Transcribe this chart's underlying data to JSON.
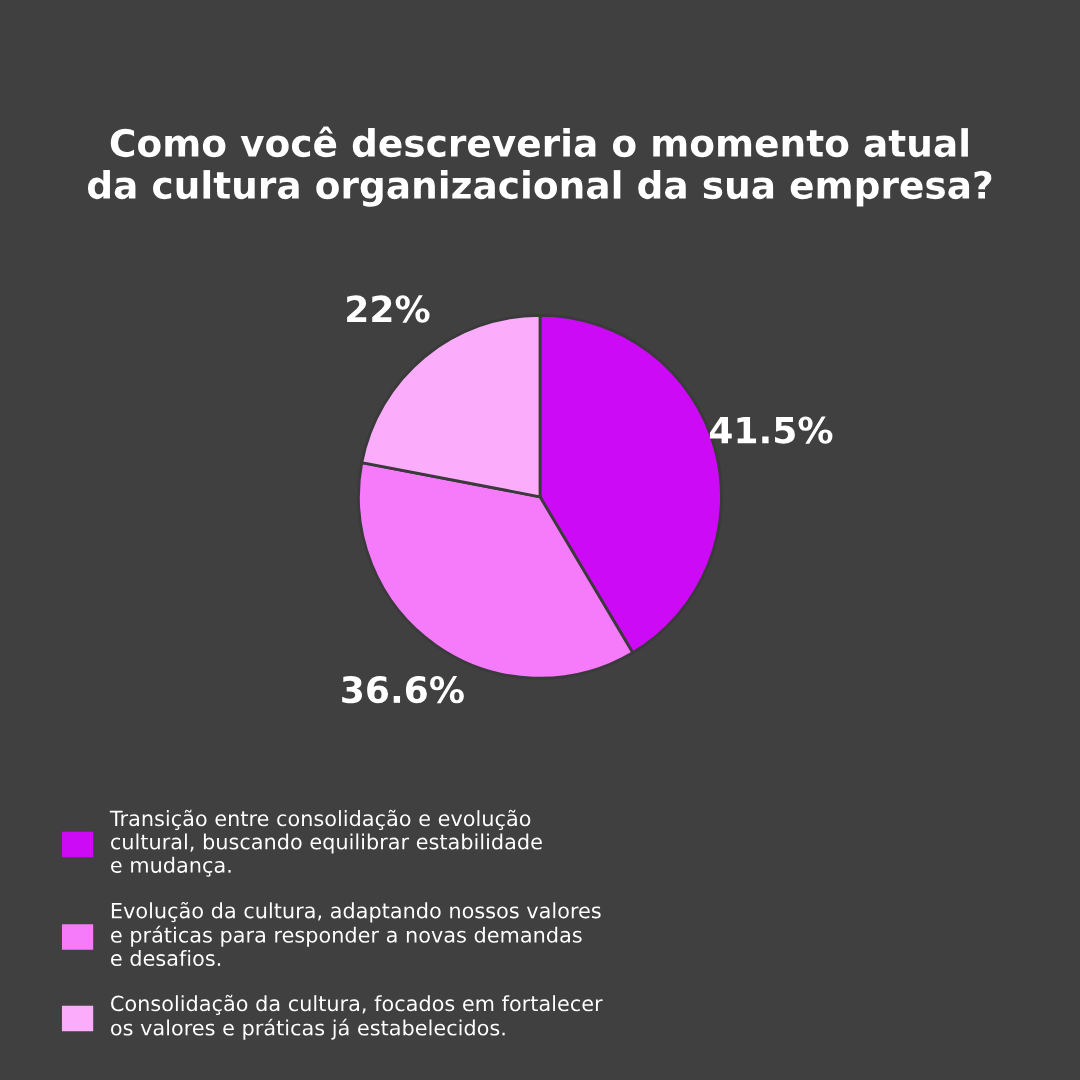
{
  "chart_data": {
    "type": "pie",
    "title": "Como você descreveria o momento atual\nda cultura organizacional da sua empresa?",
    "categories": [
      "Transição entre consolidação e evolução\ncultural, buscando equilibrar estabilidade\ne mudança.",
      "Evolução da cultura, adaptando nossos valores\ne práticas para responder a novas demandas\ne desafios.",
      "Consolidação da cultura, focados em fortalecer\nos valores e práticas já estabelecidos."
    ],
    "values": [
      41.5,
      36.6,
      22
    ],
    "value_labels": [
      "41.5%",
      "36.6%",
      "22%"
    ],
    "colors": [
      "#cc0af5",
      "#f57bfa",
      "#fbadfc"
    ],
    "legend": "bottom"
  }
}
